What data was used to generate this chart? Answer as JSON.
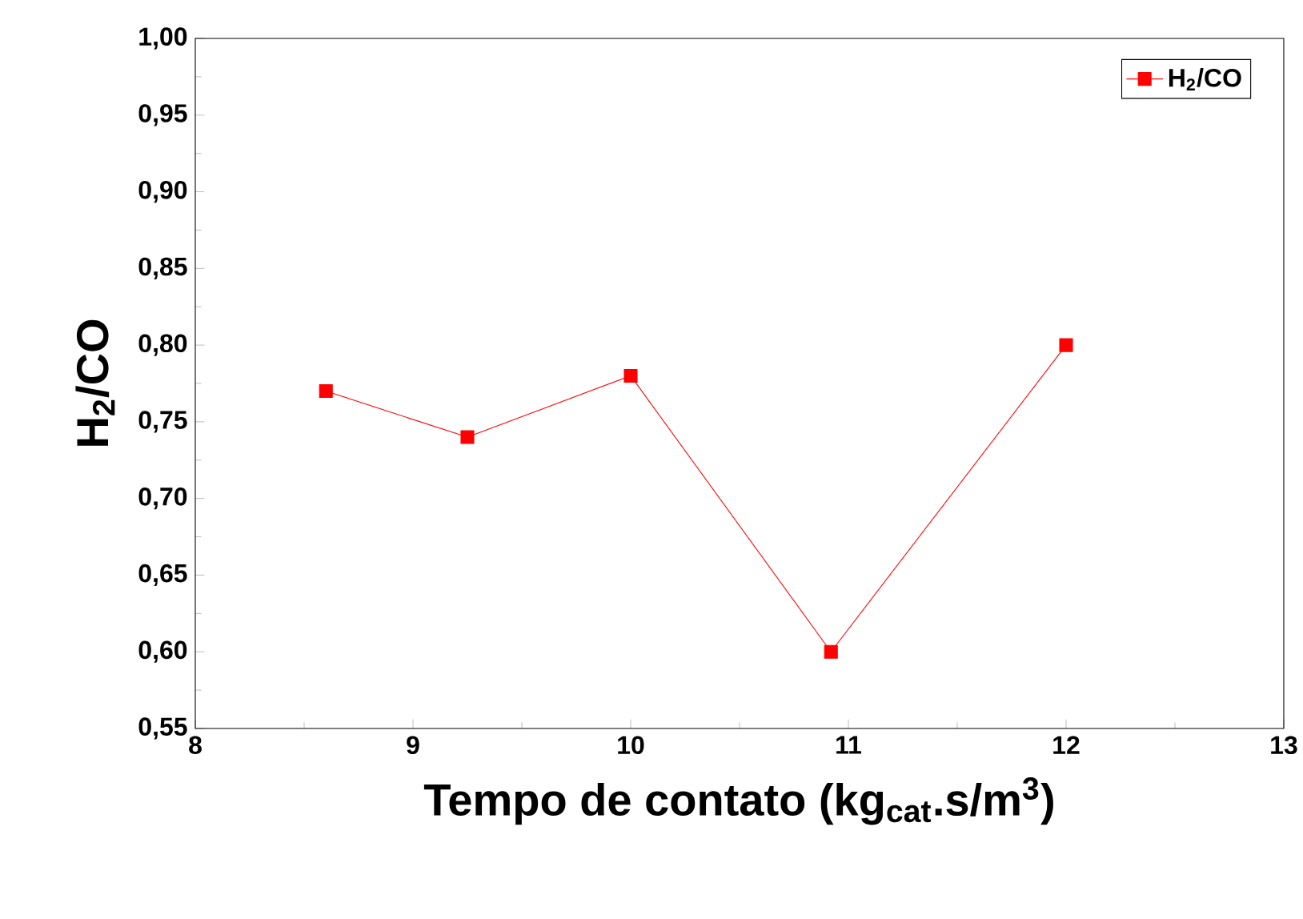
{
  "chart_data": {
    "type": "line",
    "xlabel": "Tempo de contato (kg$_{cat}$.s/m$^{3}$)",
    "ylabel": "H$_{2}$/CO",
    "x": [
      8.6,
      9.25,
      10.0,
      10.92,
      12.0
    ],
    "series": [
      {
        "name": "H$_{2}$/CO",
        "color": "#ff0000",
        "values": [
          0.77,
          0.74,
          0.78,
          0.6,
          0.8
        ]
      }
    ],
    "xlim": [
      8,
      13
    ],
    "xticks": [
      8,
      9,
      10,
      11,
      12,
      13
    ],
    "ylim": [
      0.55,
      1.0
    ],
    "yticks": [
      {
        "value": 0.55,
        "label": "0,55"
      },
      {
        "value": 0.6,
        "label": "0,60"
      },
      {
        "value": 0.65,
        "label": "0,65"
      },
      {
        "value": 0.7,
        "label": "0,70"
      },
      {
        "value": 0.75,
        "label": "0,75"
      },
      {
        "value": 0.8,
        "label": "0,80"
      },
      {
        "value": 0.85,
        "label": "0,85"
      },
      {
        "value": 0.9,
        "label": "0,90"
      },
      {
        "value": 0.95,
        "label": "0,95"
      },
      {
        "value": 1.0,
        "label": "1,00"
      }
    ],
    "legend": "top right",
    "marker": "square",
    "line_style": "solid",
    "grid": false
  }
}
